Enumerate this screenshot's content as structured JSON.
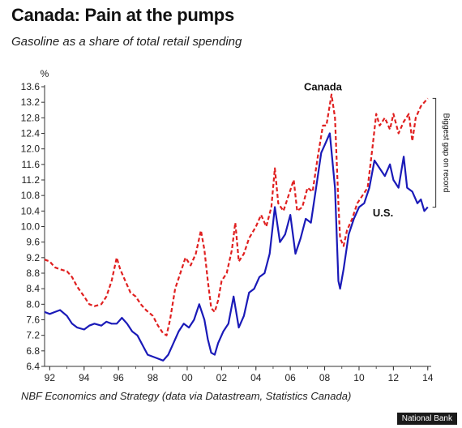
{
  "chart_data": {
    "type": "line",
    "title": "Canada: Pain at the pumps",
    "subtitle": "Gasoline as a share of total retail spending",
    "ylabel": "%",
    "source": "NBF Economics and Strategy (data via Datastream, Statistics Canada)",
    "badge": "National Bank",
    "ylim": [
      6.4,
      13.6
    ],
    "yticks": [
      "6.4",
      "6.8",
      "7.2",
      "7.6",
      "8.0",
      "8.4",
      "8.8",
      "9.2",
      "9.6",
      "10.0",
      "10.4",
      "10.8",
      "11.2",
      "11.6",
      "12.0",
      "12.4",
      "12.8",
      "13.2",
      "13.6"
    ],
    "xlim": [
      1991.7,
      2014.2
    ],
    "xticks": [
      "92",
      "94",
      "96",
      "98",
      "00",
      "02",
      "04",
      "06",
      "08",
      "10",
      "12",
      "14"
    ],
    "annotation": "Biggest gap on record",
    "series": [
      {
        "name": "Canada",
        "color": "#e02020",
        "dash": true,
        "points": [
          [
            1991.7,
            9.15
          ],
          [
            1992.0,
            9.1
          ],
          [
            1992.3,
            8.95
          ],
          [
            1992.6,
            8.9
          ],
          [
            1993.0,
            8.85
          ],
          [
            1993.3,
            8.7
          ],
          [
            1993.6,
            8.45
          ],
          [
            1994.0,
            8.2
          ],
          [
            1994.3,
            8.0
          ],
          [
            1994.6,
            7.95
          ],
          [
            1995.0,
            8.0
          ],
          [
            1995.3,
            8.2
          ],
          [
            1995.6,
            8.6
          ],
          [
            1995.9,
            9.2
          ],
          [
            1996.1,
            8.9
          ],
          [
            1996.4,
            8.6
          ],
          [
            1996.7,
            8.3
          ],
          [
            1997.0,
            8.2
          ],
          [
            1997.3,
            8.0
          ],
          [
            1997.6,
            7.85
          ],
          [
            1998.0,
            7.7
          ],
          [
            1998.3,
            7.45
          ],
          [
            1998.6,
            7.25
          ],
          [
            1998.8,
            7.2
          ],
          [
            1999.0,
            7.6
          ],
          [
            1999.3,
            8.4
          ],
          [
            1999.6,
            8.8
          ],
          [
            1999.9,
            9.2
          ],
          [
            2000.2,
            9.0
          ],
          [
            2000.5,
            9.3
          ],
          [
            2000.8,
            9.9
          ],
          [
            2001.0,
            9.4
          ],
          [
            2001.2,
            8.6
          ],
          [
            2001.4,
            7.9
          ],
          [
            2001.6,
            7.8
          ],
          [
            2001.8,
            8.1
          ],
          [
            2002.0,
            8.6
          ],
          [
            2002.3,
            8.8
          ],
          [
            2002.6,
            9.4
          ],
          [
            2002.8,
            10.1
          ],
          [
            2003.0,
            9.1
          ],
          [
            2003.3,
            9.3
          ],
          [
            2003.6,
            9.7
          ],
          [
            2004.0,
            10.0
          ],
          [
            2004.3,
            10.3
          ],
          [
            2004.6,
            10.0
          ],
          [
            2004.9,
            10.5
          ],
          [
            2005.1,
            11.5
          ],
          [
            2005.3,
            10.6
          ],
          [
            2005.6,
            10.4
          ],
          [
            2005.9,
            10.8
          ],
          [
            2006.2,
            11.2
          ],
          [
            2006.4,
            10.4
          ],
          [
            2006.7,
            10.5
          ],
          [
            2007.0,
            11.0
          ],
          [
            2007.3,
            10.9
          ],
          [
            2007.6,
            11.8
          ],
          [
            2007.9,
            12.6
          ],
          [
            2008.1,
            12.6
          ],
          [
            2008.4,
            13.4
          ],
          [
            2008.6,
            12.8
          ],
          [
            2008.8,
            10.6
          ],
          [
            2008.9,
            9.7
          ],
          [
            2009.1,
            9.5
          ],
          [
            2009.3,
            9.9
          ],
          [
            2009.6,
            10.2
          ],
          [
            2009.9,
            10.6
          ],
          [
            2010.2,
            10.8
          ],
          [
            2010.5,
            11.0
          ],
          [
            2010.8,
            12.1
          ],
          [
            2011.0,
            12.9
          ],
          [
            2011.2,
            12.6
          ],
          [
            2011.5,
            12.8
          ],
          [
            2011.8,
            12.5
          ],
          [
            2012.0,
            12.9
          ],
          [
            2012.3,
            12.4
          ],
          [
            2012.6,
            12.7
          ],
          [
            2012.9,
            12.9
          ],
          [
            2013.1,
            12.2
          ],
          [
            2013.3,
            12.8
          ],
          [
            2013.6,
            13.1
          ],
          [
            2013.8,
            13.2
          ],
          [
            2014.0,
            13.3
          ]
        ]
      },
      {
        "name": "U.S.",
        "color": "#1a1ab8",
        "dash": false,
        "points": [
          [
            1991.7,
            7.8
          ],
          [
            1992.0,
            7.75
          ],
          [
            1992.3,
            7.8
          ],
          [
            1992.6,
            7.85
          ],
          [
            1993.0,
            7.7
          ],
          [
            1993.3,
            7.5
          ],
          [
            1993.6,
            7.4
          ],
          [
            1994.0,
            7.35
          ],
          [
            1994.3,
            7.45
          ],
          [
            1994.6,
            7.5
          ],
          [
            1995.0,
            7.45
          ],
          [
            1995.3,
            7.55
          ],
          [
            1995.6,
            7.5
          ],
          [
            1995.9,
            7.5
          ],
          [
            1996.2,
            7.65
          ],
          [
            1996.5,
            7.5
          ],
          [
            1996.8,
            7.3
          ],
          [
            1997.1,
            7.2
          ],
          [
            1997.4,
            6.95
          ],
          [
            1997.7,
            6.7
          ],
          [
            1998.0,
            6.65
          ],
          [
            1998.3,
            6.6
          ],
          [
            1998.6,
            6.55
          ],
          [
            1998.9,
            6.7
          ],
          [
            1999.2,
            7.0
          ],
          [
            1999.5,
            7.3
          ],
          [
            1999.8,
            7.5
          ],
          [
            2000.1,
            7.4
          ],
          [
            2000.4,
            7.6
          ],
          [
            2000.7,
            8.0
          ],
          [
            2001.0,
            7.6
          ],
          [
            2001.2,
            7.1
          ],
          [
            2001.4,
            6.75
          ],
          [
            2001.6,
            6.7
          ],
          [
            2001.8,
            7.0
          ],
          [
            2002.1,
            7.3
          ],
          [
            2002.4,
            7.5
          ],
          [
            2002.7,
            8.2
          ],
          [
            2003.0,
            7.4
          ],
          [
            2003.3,
            7.7
          ],
          [
            2003.6,
            8.3
          ],
          [
            2003.9,
            8.4
          ],
          [
            2004.2,
            8.7
          ],
          [
            2004.5,
            8.8
          ],
          [
            2004.8,
            9.3
          ],
          [
            2005.1,
            10.5
          ],
          [
            2005.4,
            9.6
          ],
          [
            2005.7,
            9.8
          ],
          [
            2006.0,
            10.3
          ],
          [
            2006.3,
            9.3
          ],
          [
            2006.6,
            9.7
          ],
          [
            2006.9,
            10.2
          ],
          [
            2007.2,
            10.1
          ],
          [
            2007.5,
            11.0
          ],
          [
            2007.8,
            11.9
          ],
          [
            2008.0,
            12.1
          ],
          [
            2008.3,
            12.4
          ],
          [
            2008.6,
            11.0
          ],
          [
            2008.8,
            8.6
          ],
          [
            2008.9,
            8.4
          ],
          [
            2009.1,
            8.9
          ],
          [
            2009.4,
            9.8
          ],
          [
            2009.7,
            10.2
          ],
          [
            2010.0,
            10.5
          ],
          [
            2010.3,
            10.6
          ],
          [
            2010.6,
            11.0
          ],
          [
            2010.9,
            11.7
          ],
          [
            2011.2,
            11.5
          ],
          [
            2011.5,
            11.3
          ],
          [
            2011.8,
            11.6
          ],
          [
            2012.0,
            11.2
          ],
          [
            2012.3,
            11.0
          ],
          [
            2012.6,
            11.8
          ],
          [
            2012.8,
            11.0
          ],
          [
            2013.1,
            10.9
          ],
          [
            2013.4,
            10.6
          ],
          [
            2013.6,
            10.7
          ],
          [
            2013.8,
            10.4
          ],
          [
            2014.0,
            10.5
          ]
        ]
      }
    ]
  }
}
